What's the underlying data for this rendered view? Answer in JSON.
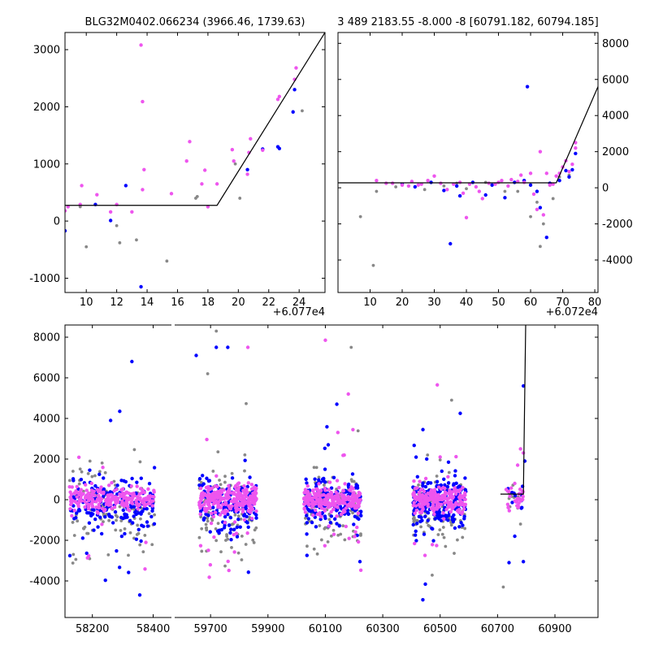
{
  "colors": {
    "primary": "#0000ff",
    "secondary": "#ee55ee",
    "tertiary": "#888888",
    "model": "#000000"
  },
  "chart_data": [
    {
      "type": "scatter",
      "panel": "top-left",
      "title": "BLG32M0402.066234 (3966.46, 1739.63)",
      "offset_label": "+6.077e4",
      "x_ticks": [
        "10",
        "12",
        "14",
        "16",
        "18",
        "20",
        "22",
        "24"
      ],
      "y_ticks": [
        "-1000",
        "0",
        "1000",
        "2000",
        "3000"
      ],
      "y_axis_side": "left",
      "xlim": [
        8.6,
        25.7
      ],
      "ylim": [
        -1250,
        3300
      ],
      "model_line": [
        [
          8.6,
          275
        ],
        [
          18.6,
          275
        ],
        [
          25.7,
          3300
        ]
      ],
      "series": [
        {
          "name": "primary",
          "color_key": "primary",
          "points": [
            [
              8.6,
              -170
            ],
            [
              10.6,
              290
            ],
            [
              12.6,
              620
            ],
            [
              13.6,
              -1150
            ],
            [
              20.6,
              900
            ],
            [
              21.6,
              1260
            ],
            [
              22.6,
              1300
            ],
            [
              22.7,
              1270
            ],
            [
              23.6,
              1910
            ],
            [
              23.7,
              2300
            ],
            [
              11.6,
              10
            ]
          ]
        },
        {
          "name": "secondary",
          "color_key": "secondary",
          "points": [
            [
              8.6,
              180
            ],
            [
              8.8,
              250
            ],
            [
              9.6,
              290
            ],
            [
              9.7,
              620
            ],
            [
              10.7,
              460
            ],
            [
              11.6,
              160
            ],
            [
              12,
              290
            ],
            [
              13,
              160
            ],
            [
              13.6,
              3080
            ],
            [
              13.7,
              2090
            ],
            [
              13.8,
              900
            ],
            [
              13.7,
              550
            ],
            [
              15.6,
              480
            ],
            [
              16.6,
              1050
            ],
            [
              16.8,
              1390
            ],
            [
              17.6,
              650
            ],
            [
              17.8,
              890
            ],
            [
              18,
              250
            ],
            [
              18.6,
              650
            ],
            [
              19.6,
              1250
            ],
            [
              19.7,
              1050
            ],
            [
              20.6,
              820
            ],
            [
              20.7,
              1200
            ],
            [
              20.8,
              1440
            ],
            [
              21.6,
              1240
            ],
            [
              22.6,
              2130
            ],
            [
              22.7,
              2180
            ],
            [
              23.7,
              2480
            ],
            [
              23.8,
              2680
            ]
          ]
        },
        {
          "name": "tertiary",
          "color_key": "tertiary",
          "points": [
            [
              9.6,
              250
            ],
            [
              10,
              -450
            ],
            [
              12,
              -80
            ],
            [
              12.2,
              -380
            ],
            [
              13.3,
              -330
            ],
            [
              15.3,
              -700
            ],
            [
              17.2,
              400
            ],
            [
              17.3,
              430
            ],
            [
              19.8,
              1000
            ],
            [
              20.1,
              400
            ],
            [
              24.2,
              1930
            ]
          ]
        }
      ]
    },
    {
      "type": "scatter",
      "panel": "top-right",
      "title": "3 489 2183.55 -8.000 -8 [60791.182, 60794.185]",
      "offset_label": "+6.072e4",
      "x_ticks": [
        "10",
        "20",
        "30",
        "40",
        "50",
        "60",
        "70",
        "80"
      ],
      "y_ticks": [
        "-4000",
        "-2000",
        "0",
        "2000",
        "4000",
        "6000",
        "8000"
      ],
      "y_axis_side": "right",
      "xlim": [
        0,
        81
      ],
      "ylim": [
        -5800,
        8600
      ],
      "model_line": [
        [
          0,
          275
        ],
        [
          68,
          275
        ],
        [
          81,
          5600
        ]
      ],
      "series": [
        {
          "name": "primary",
          "color_key": "primary",
          "points": [
            [
              59,
              5600
            ],
            [
              35,
              -3100
            ],
            [
              65,
              -2750
            ],
            [
              29,
              300
            ],
            [
              33,
              -150
            ],
            [
              38,
              -450
            ],
            [
              46,
              -400
            ],
            [
              52,
              -550
            ],
            [
              58,
              400
            ],
            [
              62,
              -200
            ],
            [
              71,
              950
            ],
            [
              72,
              600
            ],
            [
              73,
              1000
            ],
            [
              74,
              1900
            ],
            [
              63,
              -1100
            ],
            [
              20,
              200
            ],
            [
              42,
              300
            ],
            [
              55,
              300
            ],
            [
              48,
              150
            ],
            [
              24,
              50
            ],
            [
              60,
              150
            ],
            [
              66,
              250
            ],
            [
              69,
              400
            ],
            [
              37,
              100
            ]
          ]
        },
        {
          "name": "secondary",
          "color_key": "secondary",
          "points": [
            [
              12,
              400
            ],
            [
              15,
              250
            ],
            [
              17,
              250
            ],
            [
              20,
              150
            ],
            [
              22,
              100
            ],
            [
              23,
              350
            ],
            [
              25,
              150
            ],
            [
              26,
              200
            ],
            [
              28,
              400
            ],
            [
              30,
              650
            ],
            [
              32,
              250
            ],
            [
              34,
              -100
            ],
            [
              36,
              200
            ],
            [
              38,
              300
            ],
            [
              39,
              -300
            ],
            [
              40,
              -1650
            ],
            [
              41,
              200
            ],
            [
              43,
              50
            ],
            [
              44,
              -200
            ],
            [
              45,
              -600
            ],
            [
              47,
              250
            ],
            [
              49,
              200
            ],
            [
              50,
              300
            ],
            [
              51,
              400
            ],
            [
              53,
              100
            ],
            [
              54,
              450
            ],
            [
              56,
              350
            ],
            [
              57,
              700
            ],
            [
              58,
              300
            ],
            [
              60,
              800
            ],
            [
              61,
              -350
            ],
            [
              62,
              -1200
            ],
            [
              63,
              2000
            ],
            [
              64,
              -1500
            ],
            [
              65,
              800
            ],
            [
              66,
              150
            ],
            [
              67,
              200
            ],
            [
              68,
              650
            ],
            [
              69,
              800
            ],
            [
              70,
              1150
            ],
            [
              71,
              1500
            ],
            [
              72,
              900
            ],
            [
              73,
              1300
            ],
            [
              74,
              2500
            ],
            [
              74,
              2200
            ]
          ]
        },
        {
          "name": "tertiary",
          "color_key": "tertiary",
          "points": [
            [
              7,
              -1600
            ],
            [
              11,
              -4300
            ],
            [
              12,
              -200
            ],
            [
              18,
              50
            ],
            [
              27,
              -100
            ],
            [
              33,
              100
            ],
            [
              37,
              250
            ],
            [
              40,
              -50
            ],
            [
              46,
              300
            ],
            [
              52,
              -200
            ],
            [
              56,
              -200
            ],
            [
              60,
              -1600
            ],
            [
              62,
              -800
            ],
            [
              63,
              -3250
            ],
            [
              67,
              -600
            ],
            [
              64,
              -2000
            ],
            [
              69,
              600
            ],
            [
              72,
              700
            ]
          ]
        }
      ]
    },
    {
      "type": "scatter",
      "panel": "bottom",
      "x_ticks": [
        "58200",
        "58400",
        "59700",
        "59900",
        "60100",
        "60300",
        "60500",
        "60700",
        "60900"
      ],
      "y_ticks": [
        "-4000",
        "-2000",
        "0",
        "2000",
        "4000",
        "6000",
        "8000"
      ],
      "y_axis_side": "left",
      "ylim": [
        -5800,
        8600
      ],
      "segments": [
        {
          "xlim": [
            58110,
            58460
          ]
        },
        {
          "xlim": [
            59575,
            61050
          ]
        }
      ],
      "model_line": [
        [
          60710,
          275
        ],
        [
          60790,
          275
        ],
        [
          60798,
          8600
        ]
      ],
      "seasons": [
        {
          "x_range": [
            58125,
            58405
          ],
          "scatter_sd": 900,
          "tail_low": -5600,
          "tail_high": 6800
        },
        {
          "x_range": [
            59660,
            59860
          ],
          "scatter_sd": 1000,
          "tail_low": -5200,
          "tail_high": 8200
        },
        {
          "x_range": [
            60025,
            60225
          ],
          "scatter_sd": 900,
          "tail_low": -5600,
          "tail_high": 7900
        },
        {
          "x_range": [
            60405,
            60590
          ],
          "scatter_sd": 900,
          "tail_low": -5600,
          "tail_high": 5600
        }
      ],
      "highlight_points": {
        "primary": [
          [
            58330,
            6800
          ],
          [
            58290,
            4350
          ],
          [
            58260,
            3900
          ],
          [
            59760,
            7500
          ],
          [
            59720,
            7500
          ],
          [
            59650,
            7100
          ],
          [
            60140,
            4700
          ],
          [
            60110,
            2700
          ],
          [
            60440,
            3450
          ],
          [
            60570,
            4250
          ],
          [
            60790,
            5600
          ],
          [
            60795,
            1900
          ],
          [
            60740,
            -3100
          ],
          [
            60790,
            -3050
          ],
          [
            60760,
            -1800
          ]
        ],
        "secondary": [
          [
            59830,
            7500
          ],
          [
            60100,
            7850
          ],
          [
            60180,
            5200
          ],
          [
            60490,
            5650
          ],
          [
            60500,
            2100
          ],
          [
            60780,
            2500
          ],
          [
            60790,
            2300
          ],
          [
            60760,
            800
          ],
          [
            60730,
            500
          ],
          [
            60770,
            1700
          ]
        ],
        "tertiary": [
          [
            59720,
            8300
          ],
          [
            59690,
            6200
          ],
          [
            60190,
            7500
          ],
          [
            60540,
            4900
          ],
          [
            60720,
            -4300
          ],
          [
            60780,
            -1200
          ]
        ]
      }
    }
  ]
}
